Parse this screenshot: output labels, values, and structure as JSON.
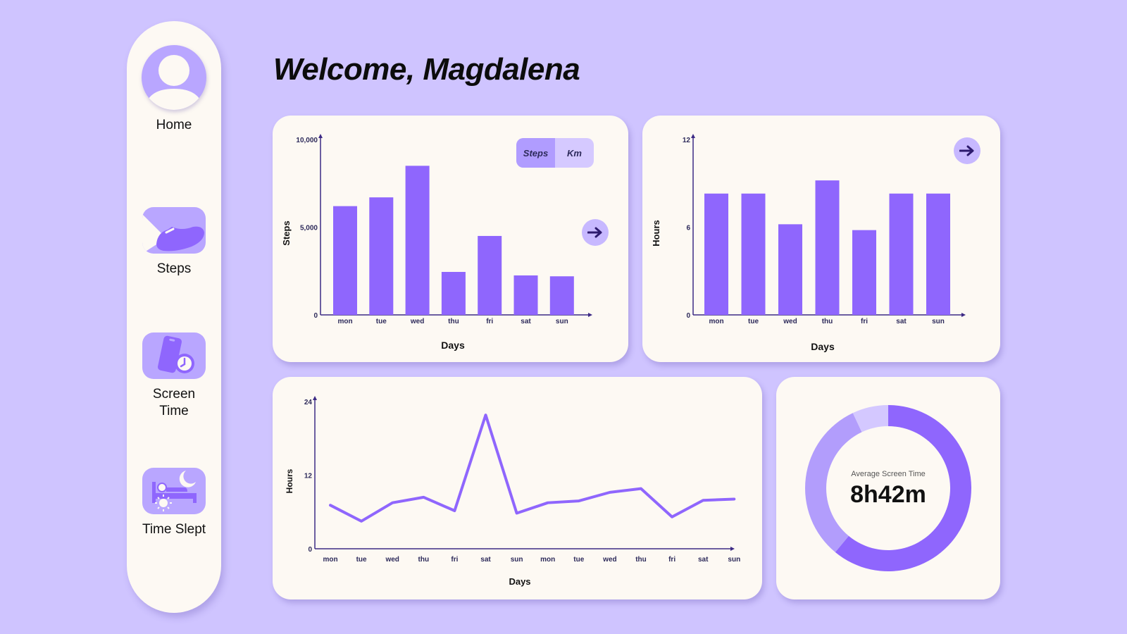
{
  "sidebar": {
    "items": [
      {
        "label": "Home",
        "icon": "user-avatar-icon"
      },
      {
        "label": "Steps",
        "icon": "shoe-icon"
      },
      {
        "label": "Screen Time",
        "icon": "phone-clock-icon"
      },
      {
        "label": "Time Slept",
        "icon": "bed-moon-icon"
      }
    ]
  },
  "header": {
    "title": "Welcome, Magdalena"
  },
  "steps_card": {
    "toggle": {
      "steps_label": "Steps",
      "km_label": "Km",
      "active": "Steps"
    }
  },
  "colors": {
    "background": "#cfc4ff",
    "card": "#fdf9f3",
    "accent": "#8f66fd",
    "accent_light": "#b9a6ff",
    "axis": "#3d2a85"
  },
  "donut": {
    "label": "Average Screen Time",
    "value": "8h42m"
  },
  "chart_data": [
    {
      "type": "bar",
      "categories": [
        "mon",
        "tue",
        "wed",
        "thu",
        "fri",
        "sat",
        "sun"
      ],
      "values": [
        6200,
        6700,
        8500,
        2450,
        4500,
        2250,
        2200
      ],
      "xlabel": "Days",
      "ylabel": "Steps",
      "ylim": [
        0,
        10000
      ],
      "yticks": [
        "0",
        "5,000",
        "10,000"
      ]
    },
    {
      "type": "bar",
      "categories": [
        "mon",
        "tue",
        "wed",
        "thu",
        "fri",
        "sat",
        "sun"
      ],
      "values": [
        8.3,
        8.3,
        6.2,
        9.2,
        5.8,
        8.3,
        8.3
      ],
      "xlabel": "Days",
      "ylabel": "Hours",
      "ylim": [
        0,
        12
      ],
      "yticks": [
        "0",
        "6",
        "12"
      ]
    },
    {
      "type": "line",
      "categories": [
        "mon",
        "tue",
        "wed",
        "thu",
        "fri",
        "sat",
        "sun",
        "mon",
        "tue",
        "wed",
        "thu",
        "fri",
        "sat",
        "sun"
      ],
      "values": [
        7.1,
        4.5,
        7.5,
        8.4,
        6.2,
        21.8,
        5.8,
        7.5,
        7.8,
        9.2,
        9.8,
        5.2,
        7.9,
        8.1
      ],
      "xlabel": "Days",
      "ylabel": "Hours",
      "ylim": [
        0,
        24
      ],
      "yticks": [
        "0",
        "12",
        "24"
      ]
    },
    {
      "type": "pie",
      "style": "donut",
      "values": [
        0.61,
        0.32,
        0.07
      ]
    }
  ]
}
